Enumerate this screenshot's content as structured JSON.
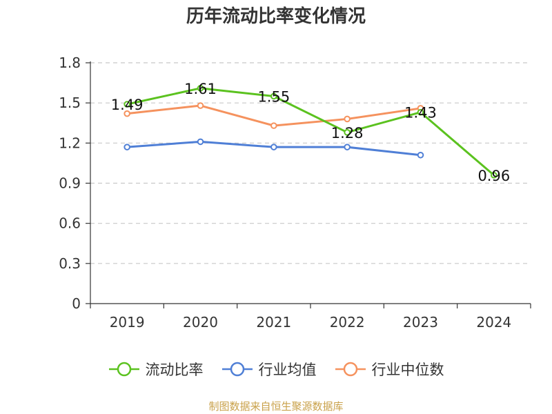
{
  "chart_data": {
    "type": "line",
    "title": "历年流动比率变化情况",
    "categories": [
      "2019",
      "2020",
      "2021",
      "2022",
      "2023",
      "2024"
    ],
    "ylim": [
      0,
      1.8
    ],
    "yticks": [
      "0",
      "0.3",
      "0.6",
      "0.9",
      "1.2",
      "1.5",
      "1.8"
    ],
    "grid": "horizontal-dashed",
    "legend_position": "bottom",
    "series": [
      {
        "name": "流动比率",
        "color": "#5bc21f",
        "values": [
          1.49,
          1.61,
          1.55,
          1.28,
          1.43,
          0.96
        ],
        "labels": [
          "1.49",
          "1.61",
          "1.55",
          "1.28",
          "1.43",
          "0.96"
        ]
      },
      {
        "name": "行业均值",
        "color": "#4f7fd6",
        "values": [
          1.17,
          1.21,
          1.17,
          1.17,
          1.11,
          null
        ]
      },
      {
        "name": "行业中位数",
        "color": "#f5925e",
        "values": [
          1.42,
          1.48,
          1.33,
          1.38,
          1.46,
          null
        ]
      }
    ]
  },
  "footer": {
    "source": "制图数据来自恒生聚源数据库"
  }
}
